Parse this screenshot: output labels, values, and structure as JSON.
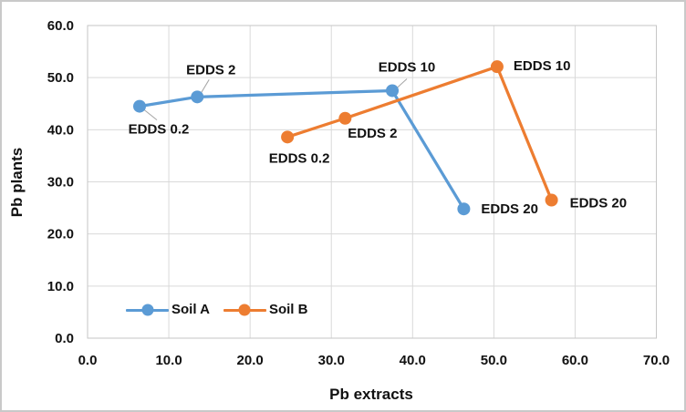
{
  "chart_data": {
    "type": "line",
    "title": "",
    "xlabel": "Pb extracts",
    "ylabel": "Pb plants",
    "xlim": [
      0,
      70
    ],
    "ylim": [
      0,
      60
    ],
    "grid": true,
    "legend_position": "bottom-inside",
    "xticks": {
      "values": [
        0,
        10,
        20,
        30,
        40,
        50,
        60,
        70
      ],
      "labels": [
        "0.0",
        "10.0",
        "20.0",
        "30.0",
        "40.0",
        "50.0",
        "60.0",
        "70.0"
      ]
    },
    "yticks": {
      "values": [
        0,
        10,
        20,
        30,
        40,
        50,
        60
      ],
      "labels": [
        "0.0",
        "10.0",
        "20.0",
        "30.0",
        "40.0",
        "50.0",
        "60.0"
      ]
    },
    "series": [
      {
        "name": "Soil A",
        "color": "#5B9BD5",
        "points": [
          {
            "x": 6.4,
            "y": 44.5,
            "label": "EDDS 0.2",
            "anchor": "middle",
            "dx": 21,
            "dy": 30,
            "leader": [
              4,
              3,
              19,
              15
            ]
          },
          {
            "x": 13.5,
            "y": 46.3,
            "label": "EDDS 2",
            "anchor": "middle",
            "dx": 15,
            "dy": -25,
            "leader": [
              13,
              -19,
              4,
              -4
            ]
          },
          {
            "x": 37.5,
            "y": 47.5,
            "label": "EDDS 10",
            "anchor": "middle",
            "dx": 16,
            "dy": -21,
            "leader": [
              16,
              -13,
              4,
              -2
            ]
          },
          {
            "x": 46.3,
            "y": 24.8,
            "label": "EDDS 20",
            "anchor": "start",
            "dx": 19,
            "dy": 5,
            "leader": null
          }
        ]
      },
      {
        "name": "Soil B",
        "color": "#ED7D31",
        "points": [
          {
            "x": 24.6,
            "y": 38.6,
            "label": "EDDS 0.2",
            "anchor": "middle",
            "dx": 13,
            "dy": 28,
            "leader": null
          },
          {
            "x": 31.7,
            "y": 42.2,
            "label": "EDDS 2",
            "anchor": "middle",
            "dx": 30,
            "dy": 21,
            "leader": null
          },
          {
            "x": 50.4,
            "y": 52.1,
            "label": "EDDS 10",
            "anchor": "start",
            "dx": 18,
            "dy": 4,
            "leader": null
          },
          {
            "x": 57.1,
            "y": 26.5,
            "label": "EDDS 20",
            "anchor": "start",
            "dx": 20,
            "dy": 8,
            "leader": null
          }
        ]
      }
    ]
  },
  "colors": {
    "grid": "#D9D9D9",
    "frame": "#C6C6C6",
    "leader": "#A6A6A6",
    "text": "#111111",
    "series_a": "#5B9BD5",
    "series_b": "#ED7D31",
    "border": "#C9C9C9"
  }
}
